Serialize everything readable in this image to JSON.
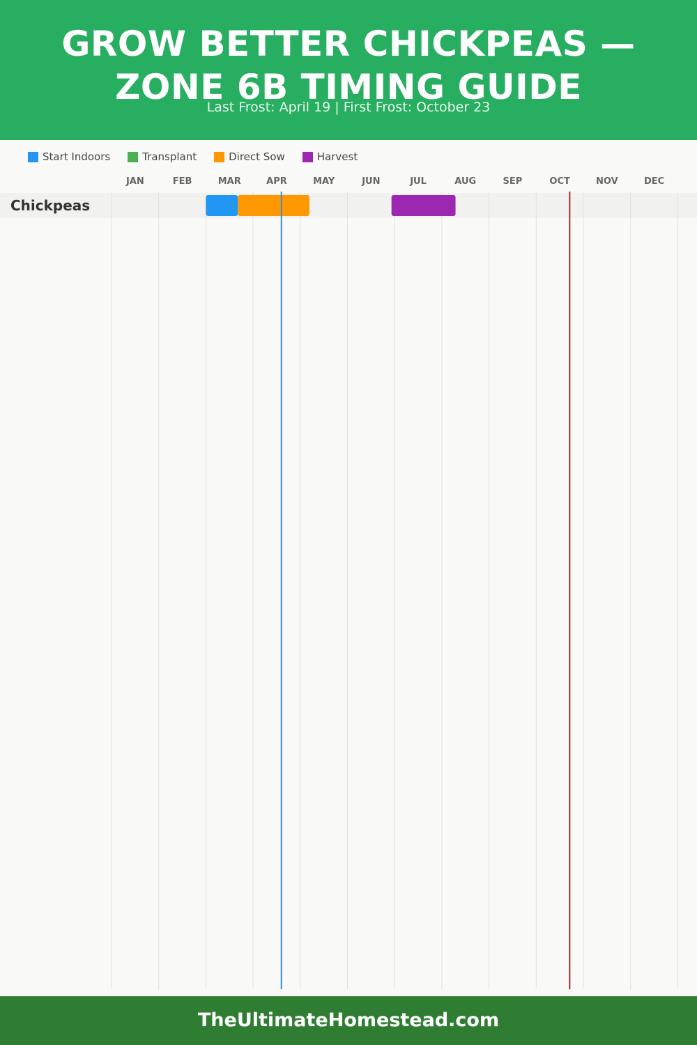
{
  "header": {
    "title_line1": "GROW BETTER CHICKPEAS —",
    "title_line2": "ZONE 6B TIMING GUIDE",
    "subtitle": "Last Frost: April 19 | First Frost: October 23"
  },
  "legend": [
    {
      "label": "Start Indoors",
      "color": "#2196f3"
    },
    {
      "label": "Transplant",
      "color": "#4caf50"
    },
    {
      "label": "Direct Sow",
      "color": "#ff9800"
    },
    {
      "label": "Harvest",
      "color": "#9c27b0"
    }
  ],
  "footer": {
    "text": "TheUltimateHomestead.com"
  },
  "chart_data": {
    "type": "gantt",
    "months": [
      "JAN",
      "FEB",
      "MAR",
      "APR",
      "MAY",
      "JUN",
      "JUL",
      "AUG",
      "SEP",
      "OCT",
      "NOV",
      "DEC"
    ],
    "rows": [
      {
        "crop": "Chickpeas",
        "periods": [
          {
            "activity": "Start Indoors",
            "start": "Mar 1",
            "end": "Mar 22",
            "color": "#2196f3"
          },
          {
            "activity": "Direct Sow",
            "start": "Mar 22",
            "end": "May 7",
            "color": "#ff9800"
          },
          {
            "activity": "Harvest",
            "start": "Jun 29",
            "end": "Aug 10",
            "color": "#9c27b0"
          }
        ]
      }
    ],
    "markers": [
      {
        "label": "Last Frost",
        "date": "Apr 19",
        "color": "#3a8fd0"
      },
      {
        "label": "First Frost",
        "date": "Oct 23",
        "color": "#a52a2a"
      }
    ],
    "grid": true
  }
}
